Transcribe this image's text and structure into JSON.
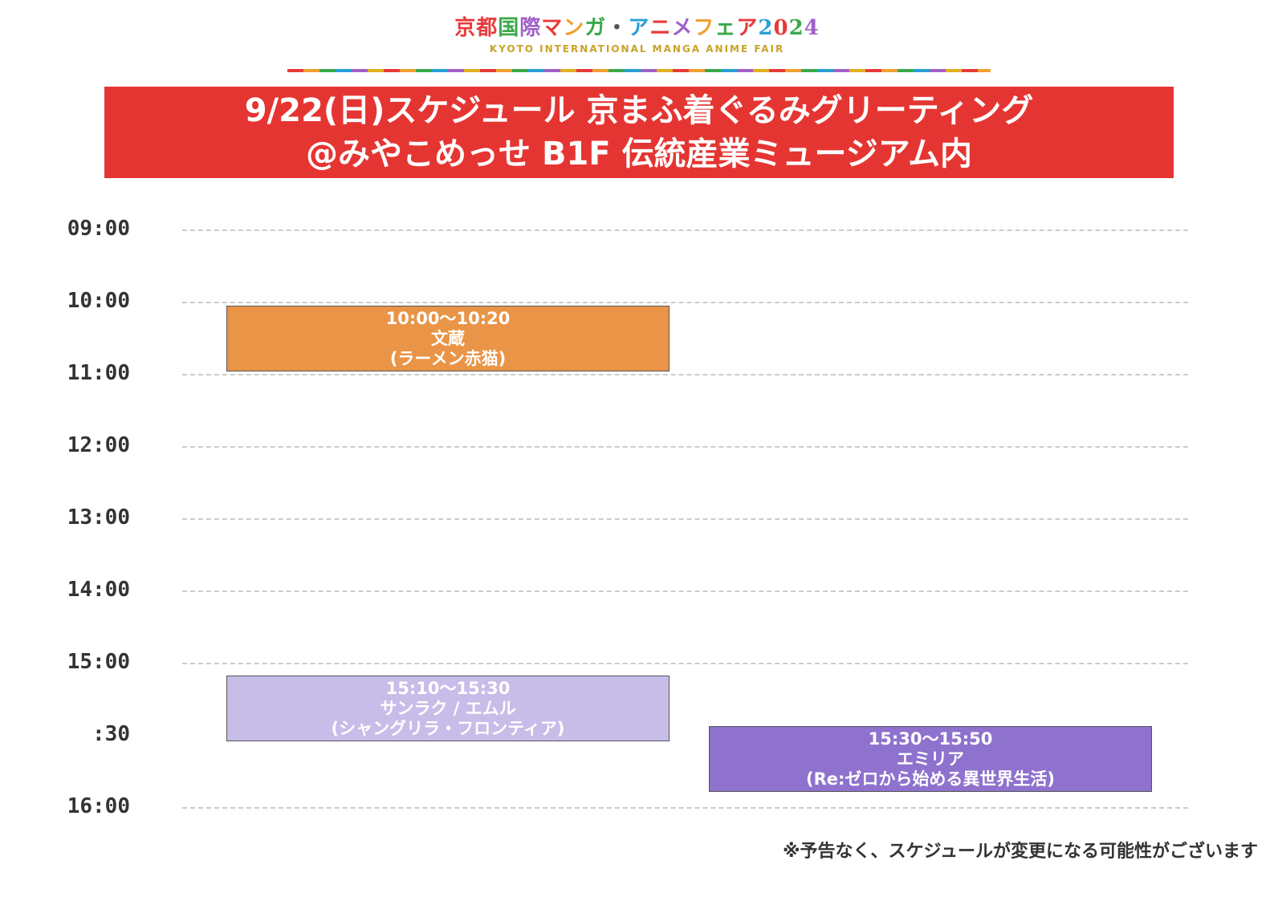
{
  "logo": {
    "jp_chars": [
      {
        "t": "京",
        "c": "#e83a3a"
      },
      {
        "t": "都",
        "c": "#e83a3a"
      },
      {
        "t": "国",
        "c": "#3aa84a"
      },
      {
        "t": "際",
        "c": "#a060c8"
      },
      {
        "t": "マ",
        "c": "#e83a3a"
      },
      {
        "t": "ン",
        "c": "#f0a030"
      },
      {
        "t": "ガ",
        "c": "#3aa84a"
      },
      {
        "t": "・",
        "c": "#555555"
      },
      {
        "t": "ア",
        "c": "#2a9fd6"
      },
      {
        "t": "ニ",
        "c": "#e83a3a"
      },
      {
        "t": "メ",
        "c": "#a060c8"
      },
      {
        "t": "フ",
        "c": "#f0a030"
      },
      {
        "t": "ェ",
        "c": "#3aa84a"
      },
      {
        "t": "ア",
        "c": "#e83a3a"
      },
      {
        "t": "2",
        "c": "#2a9fd6"
      },
      {
        "t": "0",
        "c": "#e83a3a"
      },
      {
        "t": "2",
        "c": "#3aa84a"
      },
      {
        "t": "4",
        "c": "#a060c8"
      }
    ],
    "en": "KYOTO INTERNATIONAL MANGA ANIME FAIR"
  },
  "banner": {
    "line1": "9/22(日)スケジュール 京まふ着ぐるみグリーティング",
    "line2": "@みやこめっせ B1F 伝統産業ミュージアム内"
  },
  "timeline": {
    "ticks": [
      "09:00",
      "10:00",
      "11:00",
      "12:00",
      "13:00",
      "14:00",
      "15:00",
      ":30",
      "16:00"
    ]
  },
  "events": [
    {
      "time": "10:00～10:20",
      "name": "文蔵",
      "work": "(ラーメン赤猫)"
    },
    {
      "time": "15:10～15:30",
      "name": "サンラク / エムル",
      "work": "(シャングリラ・フロンティア)"
    },
    {
      "time": "15:30～15:50",
      "name": "エミリア",
      "work": "(Re:ゼロから始める異世界生活)"
    }
  ],
  "note": "※予告なく、スケジュールが変更になる可能性がございます",
  "colors": {
    "banner": "#e53532",
    "event_a": "#e99446",
    "event_b": "#c8bde8",
    "event_c": "#8e72cd"
  }
}
